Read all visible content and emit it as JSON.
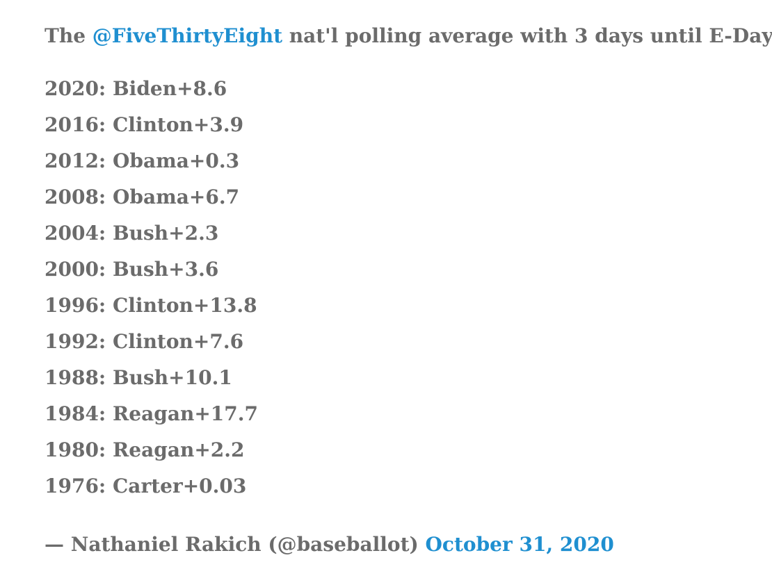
{
  "tweet": {
    "intro": {
      "prefix": "The ",
      "mention": "@FiveThirtyEight",
      "suffix": " nat'l polling average with 3 days until E-Day:"
    },
    "polls": [
      {
        "text": "2020: Biden+8.6"
      },
      {
        "text": "2016: Clinton+3.9"
      },
      {
        "text": "2012: Obama+0.3"
      },
      {
        "text": "2008: Obama+6.7"
      },
      {
        "text": "2004: Bush+2.3"
      },
      {
        "text": "2000: Bush+3.6"
      },
      {
        "text": "1996: Clinton+13.8"
      },
      {
        "text": "1992: Clinton+7.6"
      },
      {
        "text": "1988: Bush+10.1"
      },
      {
        "text": "1984: Reagan+17.7"
      },
      {
        "text": "1980: Reagan+2.2"
      },
      {
        "text": "1976: Carter+0.03"
      }
    ],
    "attribution": {
      "author": "— Nathaniel Rakich (@baseballot) ",
      "date": "October 31, 2020"
    },
    "colors": {
      "text": "#6b6b6b",
      "link": "#1f8fd0"
    }
  }
}
